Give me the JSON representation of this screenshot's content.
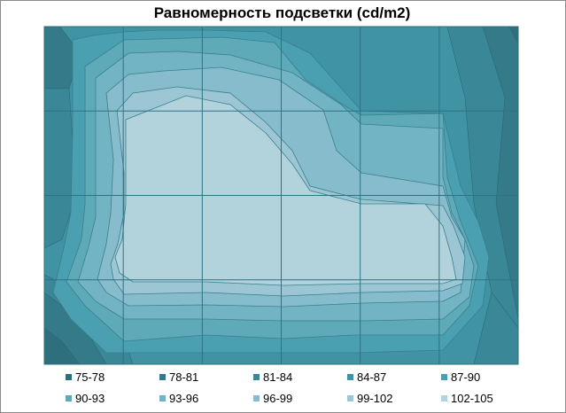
{
  "chart_data": {
    "type": "heatmap",
    "subtype": "contour",
    "title": "Равномерность подсветки (cd/m2)",
    "xlabel": "",
    "ylabel": "",
    "grid": true,
    "grid_cols": 6,
    "grid_rows": 4,
    "z_range": [
      75,
      105
    ],
    "legend_position": "bottom",
    "bands": [
      {
        "label": "75-78",
        "min": 75,
        "max": 78,
        "color": "#2f6e7c"
      },
      {
        "label": "78-81",
        "min": 78,
        "max": 81,
        "color": "#347a89"
      },
      {
        "label": "81-84",
        "min": 81,
        "max": 84,
        "color": "#3a8797"
      },
      {
        "label": "84-87",
        "min": 84,
        "max": 87,
        "color": "#3f93a3"
      },
      {
        "label": "87-90",
        "min": 87,
        "max": 90,
        "color": "#4aa0b0"
      },
      {
        "label": "90-93",
        "min": 90,
        "max": 93,
        "color": "#5eaab9"
      },
      {
        "label": "93-96",
        "min": 93,
        "max": 96,
        "color": "#72b4c3"
      },
      {
        "label": "96-99",
        "min": 96,
        "max": 99,
        "color": "#86bccc"
      },
      {
        "label": "99-102",
        "min": 99,
        "max": 102,
        "color": "#9cc6d3"
      },
      {
        "label": "102-105",
        "min": 102,
        "max": 105,
        "color": "#b2d2dc"
      }
    ],
    "grid_values": [
      [
        80,
        90,
        92,
        94,
        91,
        85,
        80
      ],
      [
        88,
        99,
        101,
        100,
        97,
        91,
        85
      ],
      [
        90,
        99,
        103,
        101,
        100,
        94,
        89
      ],
      [
        89,
        102,
        104,
        104,
        104,
        101,
        89
      ],
      [
        80,
        95,
        96,
        97,
        97,
        91,
        82
      ]
    ]
  },
  "contour_shapes": [
    {
      "band": 4,
      "points": [
        [
          82,
          45
        ],
        [
          105,
          40
        ],
        [
          140,
          36
        ],
        [
          180,
          34
        ],
        [
          230,
          34
        ],
        [
          300,
          36
        ],
        [
          350,
          60
        ],
        [
          408,
          125
        ],
        [
          500,
          128
        ],
        [
          520,
          210
        ],
        [
          540,
          250
        ],
        [
          552,
          290
        ],
        [
          545,
          345
        ],
        [
          500,
          395
        ],
        [
          400,
          398
        ],
        [
          250,
          398
        ],
        [
          120,
          398
        ],
        [
          80,
          360
        ],
        [
          60,
          330
        ],
        [
          72,
          280
        ],
        [
          80,
          240
        ],
        [
          82,
          150
        ]
      ]
    },
    {
      "band": 5,
      "points": [
        [
          96,
          75
        ],
        [
          140,
          45
        ],
        [
          250,
          42
        ],
        [
          310,
          48
        ],
        [
          345,
          90
        ],
        [
          390,
          120
        ],
        [
          408,
          130
        ],
        [
          500,
          128
        ],
        [
          505,
          200
        ],
        [
          520,
          250
        ],
        [
          540,
          300
        ],
        [
          530,
          345
        ],
        [
          500,
          378
        ],
        [
          400,
          378
        ],
        [
          320,
          382
        ],
        [
          232,
          378
        ],
        [
          140,
          385
        ],
        [
          96,
          345
        ],
        [
          75,
          318
        ],
        [
          92,
          270
        ],
        [
          96,
          230
        ],
        [
          96,
          150
        ]
      ]
    },
    {
      "band": 6,
      "points": [
        [
          108,
          88
        ],
        [
          145,
          60
        ],
        [
          200,
          58
        ],
        [
          260,
          62
        ],
        [
          330,
          82
        ],
        [
          385,
          118
        ],
        [
          408,
          140
        ],
        [
          500,
          145
        ],
        [
          500,
          200
        ],
        [
          510,
          240
        ],
        [
          525,
          270
        ],
        [
          535,
          300
        ],
        [
          530,
          335
        ],
        [
          500,
          360
        ],
        [
          410,
          362
        ],
        [
          320,
          362
        ],
        [
          232,
          360
        ],
        [
          140,
          360
        ],
        [
          108,
          340
        ],
        [
          88,
          318
        ],
        [
          100,
          278
        ],
        [
          108,
          245
        ],
        [
          108,
          150
        ]
      ]
    },
    {
      "band": 7,
      "points": [
        [
          120,
          105
        ],
        [
          145,
          84
        ],
        [
          185,
          80
        ],
        [
          250,
          76
        ],
        [
          315,
          90
        ],
        [
          365,
          124
        ],
        [
          380,
          170
        ],
        [
          408,
          195
        ],
        [
          500,
          210
        ],
        [
          510,
          245
        ],
        [
          525,
          270
        ],
        [
          520,
          330
        ],
        [
          500,
          340
        ],
        [
          410,
          342
        ],
        [
          320,
          346
        ],
        [
          232,
          344
        ],
        [
          145,
          345
        ],
        [
          120,
          330
        ],
        [
          110,
          315
        ],
        [
          120,
          275
        ],
        [
          125,
          240
        ],
        [
          128,
          180
        ]
      ]
    },
    {
      "band": 8,
      "points": [
        [
          132,
          125
        ],
        [
          150,
          105
        ],
        [
          200,
          98
        ],
        [
          260,
          105
        ],
        [
          300,
          138
        ],
        [
          330,
          170
        ],
        [
          350,
          210
        ],
        [
          408,
          225
        ],
        [
          500,
          232
        ],
        [
          512,
          255
        ],
        [
          525,
          290
        ],
        [
          522,
          320
        ],
        [
          500,
          328
        ],
        [
          410,
          330
        ],
        [
          320,
          334
        ],
        [
          232,
          330
        ],
        [
          140,
          332
        ],
        [
          128,
          315
        ],
        [
          125,
          298
        ],
        [
          133,
          275
        ],
        [
          140,
          240
        ],
        [
          140,
          195
        ]
      ]
    },
    {
      "band": 9,
      "points": [
        [
          142,
          135
        ],
        [
          210,
          108
        ],
        [
          260,
          118
        ],
        [
          300,
          150
        ],
        [
          330,
          185
        ],
        [
          350,
          215
        ],
        [
          408,
          230
        ],
        [
          480,
          230
        ],
        [
          500,
          255
        ],
        [
          510,
          290
        ],
        [
          515,
          315
        ],
        [
          500,
          320
        ],
        [
          410,
          320
        ],
        [
          320,
          322
        ],
        [
          232,
          318
        ],
        [
          150,
          318
        ],
        [
          135,
          308
        ],
        [
          130,
          290
        ],
        [
          138,
          270
        ],
        [
          142,
          230
        ]
      ]
    }
  ]
}
